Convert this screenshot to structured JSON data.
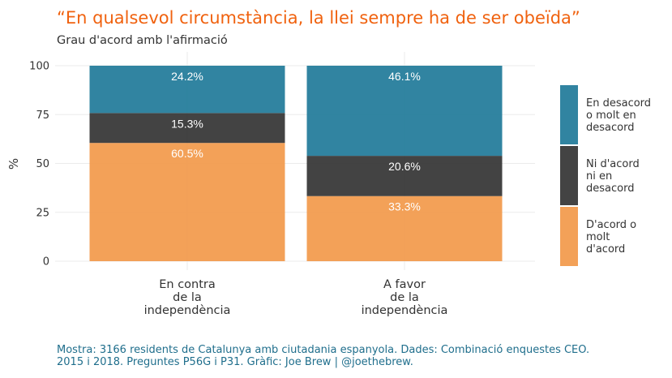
{
  "colors": {
    "title": "#f0620f",
    "caption": "#1f6e8c",
    "grid": "#ebebeb",
    "series": [
      "#1f7a99",
      "#333333",
      "#f2994a"
    ]
  },
  "chart_data": {
    "type": "bar",
    "stacked": true,
    "title": "“En qualsevol circumstància, la llei sempre ha de ser obeïda”",
    "subtitle": "Grau d'acord amb l'afirmació",
    "ylabel": "%",
    "ylim": [
      0,
      100
    ],
    "yticks": [
      "0",
      "25",
      "50",
      "75",
      "100"
    ],
    "grid": true,
    "legend_position": "right",
    "categories": [
      [
        "En contra",
        "de la",
        "independència"
      ],
      [
        "A favor",
        "de la",
        "independència"
      ]
    ],
    "series": [
      {
        "name": [
          "En desacord",
          "o molt en",
          "desacord"
        ],
        "values": [
          24.2,
          46.1
        ],
        "labels": [
          "24.2%",
          "46.1%"
        ]
      },
      {
        "name": [
          "Ni d'acord",
          "ni en",
          "desacord"
        ],
        "values": [
          15.3,
          20.6
        ],
        "labels": [
          "15.3%",
          "20.6%"
        ]
      },
      {
        "name": [
          "D'acord o",
          "molt",
          "d'acord"
        ],
        "values": [
          60.5,
          33.3
        ],
        "labels": [
          "60.5%",
          "33.3%"
        ]
      }
    ],
    "caption": [
      "Mostra: 3166 residents de Catalunya amb ciutadania espanyola. Dades: Combinació enquestes CEO.",
      "2015 i 2018. Preguntes P56G i P31. Gràfic: Joe Brew | @joethebrew."
    ]
  }
}
